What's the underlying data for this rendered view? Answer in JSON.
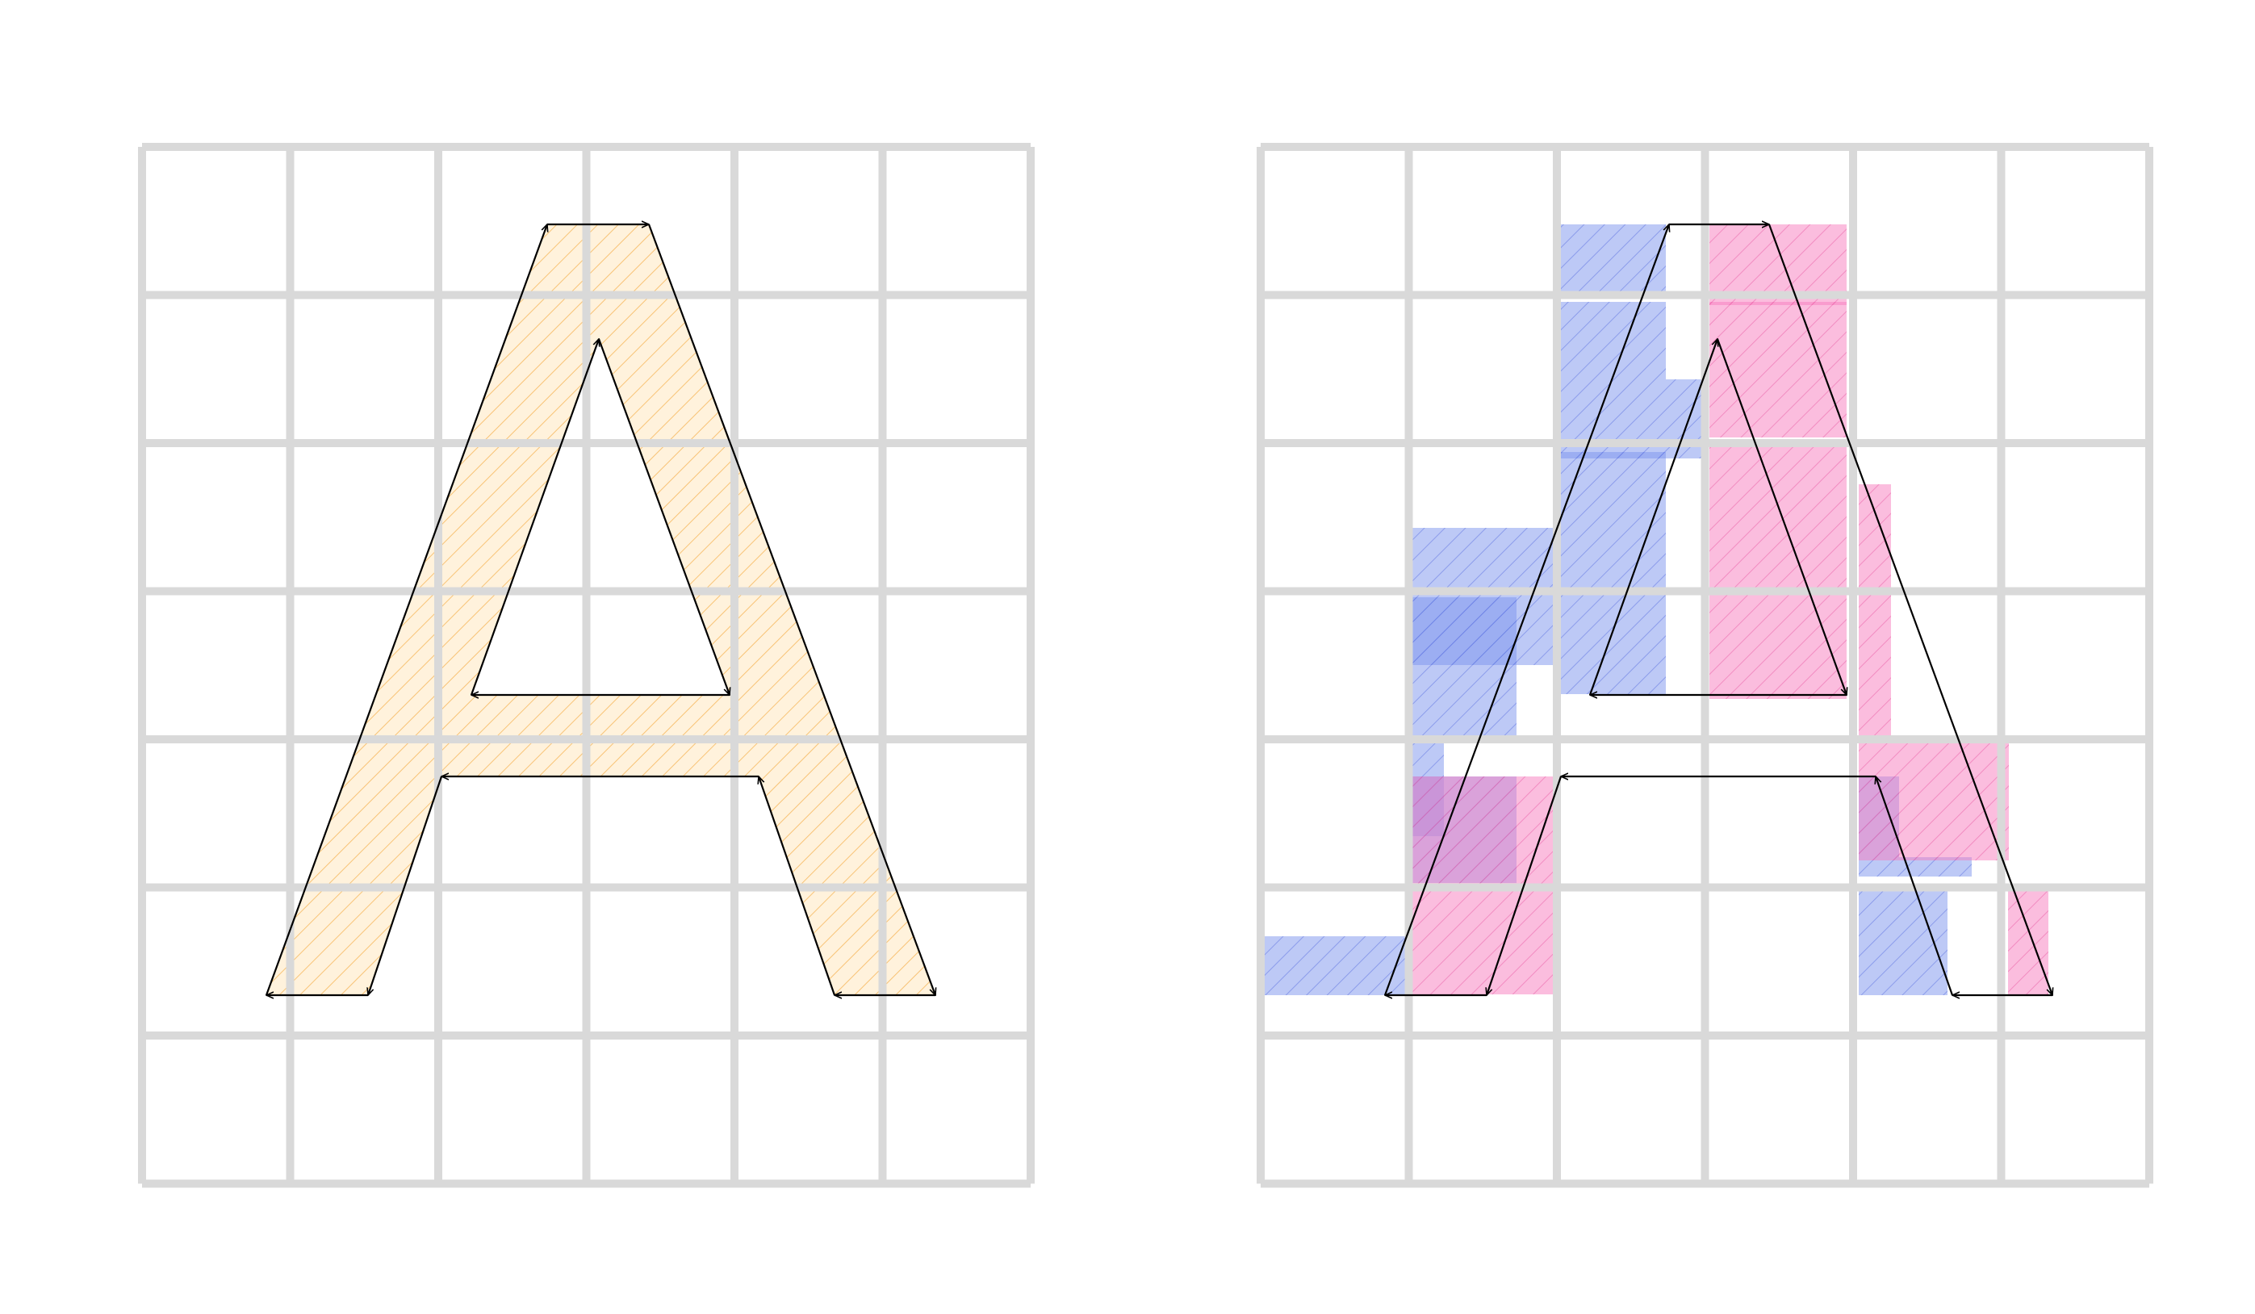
{
  "colors": {
    "background": "#ffffff",
    "grid": "#d9d9d9",
    "outline": "#000000",
    "orange_fill": "#fff2dc",
    "orange_hatch": "#f6b75c",
    "blue_fill": "#7b93ee",
    "blue_hatch": "#5a6fe0",
    "pink_fill": "#f77bbd",
    "pink_hatch": "#e85aa3"
  },
  "panels": [
    {
      "name": "left-glyph-panel",
      "glyph": "A",
      "style": "filled-glyph"
    },
    {
      "name": "right-glyph-panel",
      "glyph": "A",
      "style": "winding-cell-coverage"
    }
  ],
  "grid": {
    "columns": 6,
    "rows": 7
  }
}
